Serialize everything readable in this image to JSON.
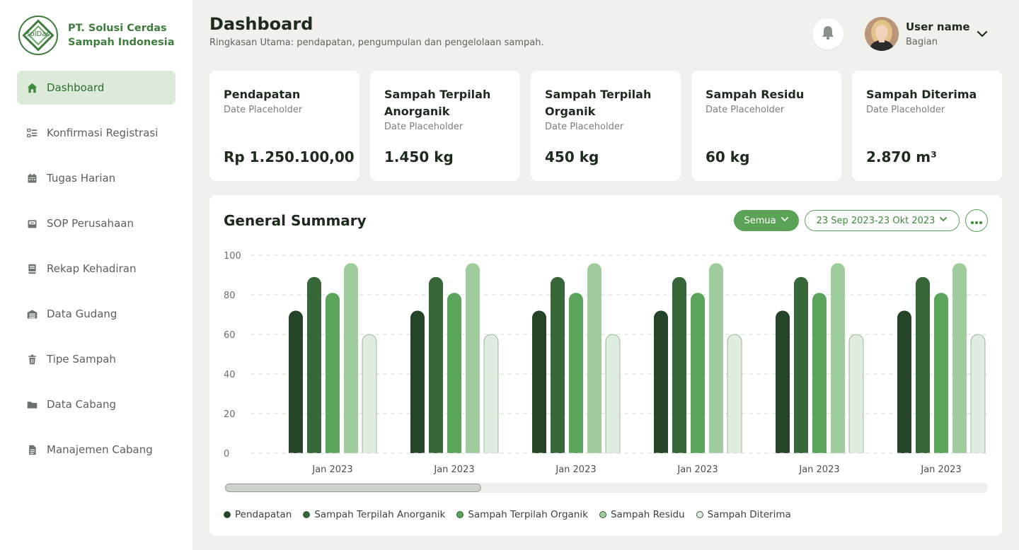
{
  "brand": {
    "logo_text": "solDas",
    "name": "PT. Solusi Cerdas Sampah Indonesia"
  },
  "sidebar": {
    "items": [
      {
        "label": "Dashboard",
        "icon": "home-icon",
        "active": true
      },
      {
        "label": "Konfirmasi Registrasi",
        "icon": "checklist-icon",
        "active": false
      },
      {
        "label": "Tugas Harian",
        "icon": "calendar-icon",
        "active": false
      },
      {
        "label": "SOP Perusahaan",
        "icon": "inbox-icon",
        "active": false
      },
      {
        "label": "Rekap Kehadiran",
        "icon": "book-icon",
        "active": false
      },
      {
        "label": "Data Gudang",
        "icon": "warehouse-icon",
        "active": false
      },
      {
        "label": "Tipe Sampah",
        "icon": "trash-icon",
        "active": false
      },
      {
        "label": "Data Cabang",
        "icon": "folder-icon",
        "active": false
      },
      {
        "label": "Manajemen Cabang",
        "icon": "document-icon",
        "active": false
      }
    ]
  },
  "header": {
    "title": "Dashboard",
    "subtitle": "Ringkasan Utama: pendapatan, pengumpulan dan pengelolaan sampah.",
    "user_name": "User name",
    "user_role": "Bagian"
  },
  "cards": [
    {
      "title": "Pendapatan",
      "date": "Date Placeholder",
      "value": "Rp 1.250.100,00"
    },
    {
      "title": "Sampah Terpilah Anorganik",
      "date": "Date Placeholder",
      "value": "1.450 kg"
    },
    {
      "title": "Sampah Terpilah Organik",
      "date": "Date Placeholder",
      "value": "450 kg"
    },
    {
      "title": "Sampah Residu",
      "date": "Date Placeholder",
      "value": "60 kg"
    },
    {
      "title": "Sampah Diterima",
      "date": "Date Placeholder",
      "value": "2.870 m³"
    }
  ],
  "summary": {
    "title": "General Summary",
    "filter_label": "Semua",
    "date_range": "23 Sep 2023-23 Okt 2023"
  },
  "colors": {
    "accent": "#5aa356",
    "series": [
      "#264427",
      "#376638",
      "#5aa35a",
      "#a0cb9c",
      "#deede0"
    ]
  },
  "chart_data": {
    "type": "bar",
    "categories": [
      "Jan 2023",
      "Jan 2023",
      "Jan 2023",
      "Jan 2023",
      "Jan 2023",
      "Jan 2023"
    ],
    "ylim": [
      0,
      100
    ],
    "yticks": [
      0,
      20,
      40,
      60,
      80,
      100
    ],
    "grid": true,
    "legend_position": "bottom-left",
    "series": [
      {
        "name": "Pendapatan",
        "values": [
          72,
          72,
          72,
          72,
          72,
          72
        ]
      },
      {
        "name": "Sampah Terpilah Anorganik",
        "values": [
          89,
          89,
          89,
          89,
          89,
          89
        ]
      },
      {
        "name": "Sampah Terpilah Organik",
        "values": [
          81,
          81,
          81,
          81,
          81,
          81
        ]
      },
      {
        "name": "Sampah Residu",
        "values": [
          96,
          96,
          96,
          96,
          96,
          96
        ]
      },
      {
        "name": "Sampah Diterima",
        "values": [
          60,
          60,
          60,
          60,
          60,
          60
        ]
      }
    ]
  }
}
